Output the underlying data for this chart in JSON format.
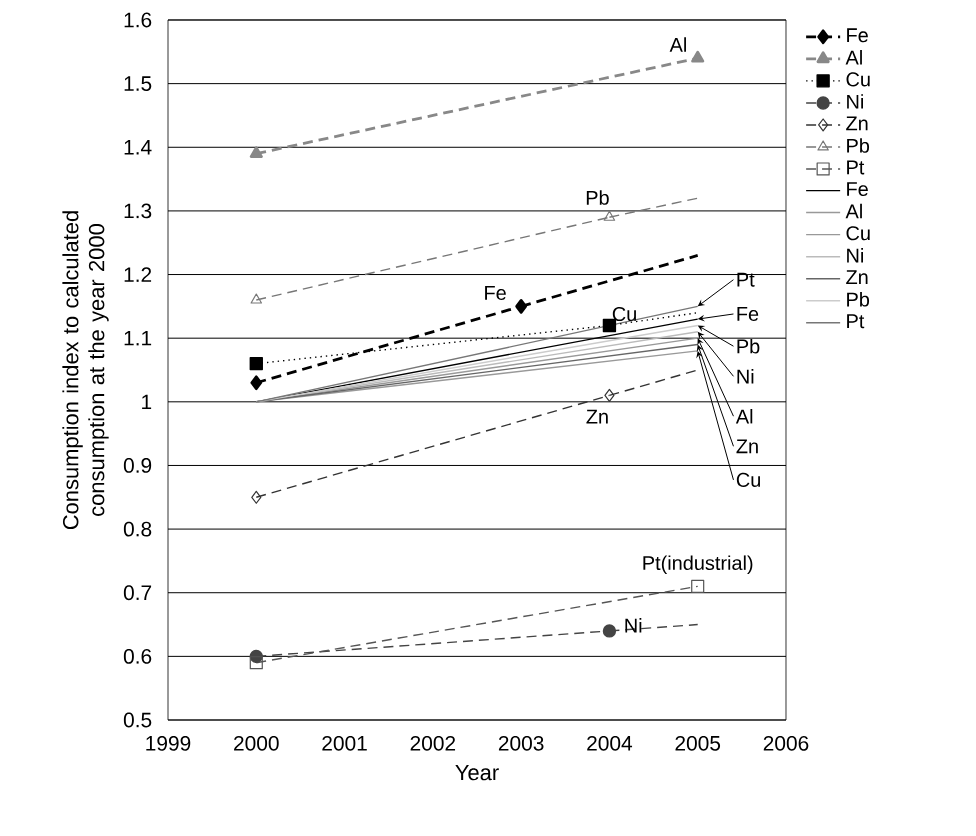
{
  "chart_data": {
    "type": "line",
    "xlabel": "Year",
    "ylabel": "Consumption index to calculated consumption at the year 2000",
    "xlim": [
      1999,
      2006
    ],
    "xticks": [
      1999,
      2000,
      2001,
      2002,
      2003,
      2004,
      2005,
      2006
    ],
    "ylim": [
      0.5,
      1.6
    ],
    "yticks": [
      0.5,
      0.6,
      0.7,
      0.8,
      0.9,
      1,
      1.1,
      1.2,
      1.3,
      1.4,
      1.5,
      1.6
    ],
    "grid": "y",
    "legend": "right",
    "series": [
      {
        "name": "Fe",
        "color": "#000000",
        "x": [
          2000,
          2003
        ],
        "values": [
          1.03,
          1.15
        ],
        "marker": "diamond",
        "line_style": "dashed"
      },
      {
        "name": "Al",
        "color": "#888888",
        "x": [
          2000,
          2005
        ],
        "values": [
          1.39,
          1.54
        ],
        "marker": "triangle",
        "line_style": "dashed"
      },
      {
        "name": "Cu",
        "color": "#000000",
        "x": [
          2000,
          2004
        ],
        "values": [
          1.06,
          1.12
        ],
        "marker": "square",
        "line_style": "dotted"
      },
      {
        "name": "Ni",
        "color": "#444444",
        "x": [
          2000,
          2004
        ],
        "values": [
          0.6,
          0.64
        ],
        "marker": "circle",
        "line_style": "dashed"
      },
      {
        "name": "Zn",
        "color": "#333333",
        "x": [
          2000,
          2004
        ],
        "values": [
          0.85,
          1.01
        ],
        "marker": "diamond",
        "line_style": "dashed"
      },
      {
        "name": "Pb",
        "color": "#777777",
        "x": [
          2000,
          2004
        ],
        "values": [
          1.16,
          1.29
        ],
        "marker": "triangle",
        "line_style": "dashed"
      },
      {
        "name": "Pt",
        "color": "#555555",
        "x": [
          2000,
          2005
        ],
        "values": [
          0.59,
          0.71
        ],
        "marker": "square",
        "line_style": "dashed"
      },
      {
        "name": "Fe",
        "color": "#000000",
        "x": [
          2000,
          2005
        ],
        "values": [
          1,
          1.13
        ],
        "line_style": "solid"
      },
      {
        "name": "Al",
        "color": "#999999",
        "x": [
          2000,
          2005
        ],
        "values": [
          1,
          1.1
        ],
        "line_style": "solid"
      },
      {
        "name": "Cu",
        "color": "#999999",
        "x": [
          2000,
          2005
        ],
        "values": [
          1,
          1.08
        ],
        "line_style": "solid"
      },
      {
        "name": "Ni",
        "color": "#bbbbbb",
        "x": [
          2000,
          2005
        ],
        "values": [
          1,
          1.11
        ],
        "line_style": "solid"
      },
      {
        "name": "Zn",
        "color": "#666666",
        "x": [
          2000,
          2005
        ],
        "values": [
          1,
          1.09
        ],
        "line_style": "solid"
      },
      {
        "name": "Pb",
        "color": "#cccccc",
        "x": [
          2000,
          2005
        ],
        "values": [
          1,
          1.12
        ],
        "line_style": "solid"
      },
      {
        "name": "Pt",
        "color": "#777777",
        "x": [
          2000,
          2005
        ],
        "values": [
          1,
          1.15
        ],
        "line_style": "solid"
      },
      {
        "color": "#000000",
        "x": [
          2003,
          2005
        ],
        "values": [
          1.15,
          1.23
        ],
        "line_style": "dashed"
      },
      {
        "color": "#000000",
        "x": [
          2004,
          2005
        ],
        "values": [
          1.12,
          1.14
        ],
        "line_style": "dotted"
      },
      {
        "color": "#444444",
        "x": [
          2004,
          2005
        ],
        "values": [
          0.64,
          0.65
        ],
        "line_style": "dashed"
      },
      {
        "color": "#333333",
        "x": [
          2004,
          2005
        ],
        "values": [
          1.01,
          1.05
        ],
        "line_style": "dashed"
      },
      {
        "color": "#777777",
        "x": [
          2004,
          2005
        ],
        "values": [
          1.29,
          1.32
        ],
        "line_style": "dashed"
      }
    ],
    "annotations": [
      {
        "text": "Al",
        "x": 2005,
        "y": 1.54
      },
      {
        "text": "Pb",
        "x": 2004,
        "y": 1.29
      },
      {
        "text": "Fe",
        "x": 2003,
        "y": 1.15
      },
      {
        "text": "Cu",
        "x": 2004,
        "y": 1.12
      },
      {
        "text": "Zn",
        "x": 2004,
        "y": 1.01
      },
      {
        "text": "Ni",
        "x": 2004,
        "y": 0.64
      },
      {
        "text": "Pt(industrial)",
        "x": 2005,
        "y": 0.71
      },
      {
        "text": "Pt",
        "x": 2005,
        "y": 1.15
      },
      {
        "text": "Fe",
        "x": 2005,
        "y": 1.13
      },
      {
        "text": "Pb",
        "x": 2005,
        "y": 1.12
      },
      {
        "text": "Ni",
        "x": 2005,
        "y": 1.11
      },
      {
        "text": "Al",
        "x": 2005,
        "y": 1.1
      },
      {
        "text": "Zn",
        "x": 2005,
        "y": 1.09
      },
      {
        "text": "Cu",
        "x": 2005,
        "y": 1.08
      }
    ]
  }
}
